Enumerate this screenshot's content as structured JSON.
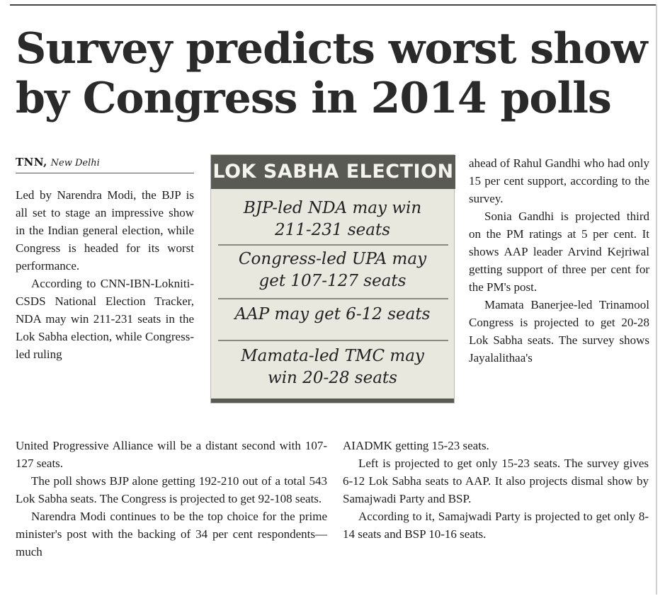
{
  "headline": {
    "line1": "Survey predicts worst show",
    "line2": "by Congress in 2014 polls"
  },
  "dateline": {
    "agency": "TNN,",
    "place": "New Delhi"
  },
  "factbox": {
    "title": "LOK SABHA ELECTION",
    "items": [
      {
        "line1": "BJP-led NDA may win",
        "line2": "211-231 seats"
      },
      {
        "line1": "Congress-led UPA may",
        "line2": "get 107-127 seats"
      },
      {
        "line1": "AAP may get 6-12 seats"
      },
      {
        "line1": "Mamata-led TMC may",
        "line2": "win 20-28 seats"
      }
    ]
  },
  "column1": {
    "para1": "Led by Narendra Modi, the BJP is all set to stage an impressive show in the Indian general election, while Congress is headed for its worst performance.",
    "para2": "According to CNN-IBN-Lokniti-CSDS National Election Tracker, NDA may win 211-231 seats in the Lok Sabha election, while Congress-led ruling"
  },
  "bottom_left": {
    "para2_cont": "United Progressive Alliance will be a distant second with 107-127 seats.",
    "para3": "The poll shows BJP alone getting 192-210 out of a total 543 Lok Sabha seats. The Congress is projected to get 92-108 seats.",
    "para4": "Narendra Modi continues to be the top choice for the prime minister's post with the backing of 34 per cent respondents— much"
  },
  "column3": {
    "para1": "ahead of Rahul Gandhi who had only 15 per cent support, according to the survey.",
    "para2": "Sonia Gandhi is projected third on the PM ratings at 5 per cent. It shows AAP leader Arvind Kejriwal getting support of three per cent for the PM's post.",
    "para3": "Mamata Banerjee-led Trinamool Congress is projected to get 20-28 Lok Sabha seats. The survey shows Jayalalithaa's"
  },
  "bottom_right": {
    "para3_cont": "AIADMK getting 15-23 seats.",
    "para4": "Left is projected to get only 15-23 seats. The survey gives 6-12 Lok Sabha seats to AAP. It also projects dismal show by Samajwadi Party and BSP.",
    "para5": "According to it, Samajwadi Party is projected to get only 8-14 seats and BSP 10-16 seats."
  }
}
